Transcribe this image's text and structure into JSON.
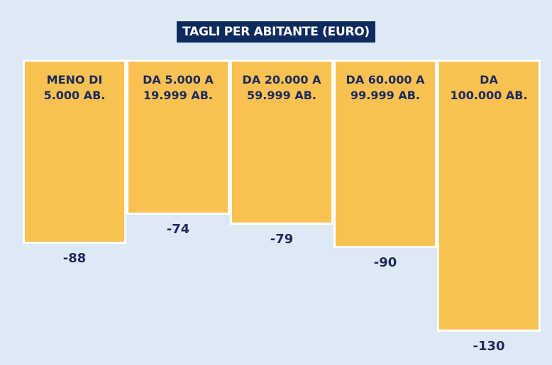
{
  "chart_data": {
    "type": "bar",
    "title": "TAGLI PER ABITANTE (EURO)",
    "categories": [
      "MENO DI\n5.000 AB.",
      "DA 5.000 A\n19.999 AB.",
      "DA 20.000 A\n59.999 AB.",
      "DA 60.000 A\n99.999 AB.",
      "DA\n100.000 AB."
    ],
    "values": [
      -88,
      -74,
      -79,
      -90,
      -130
    ],
    "color": "#f9c152",
    "ylim": [
      -130,
      0
    ]
  }
}
